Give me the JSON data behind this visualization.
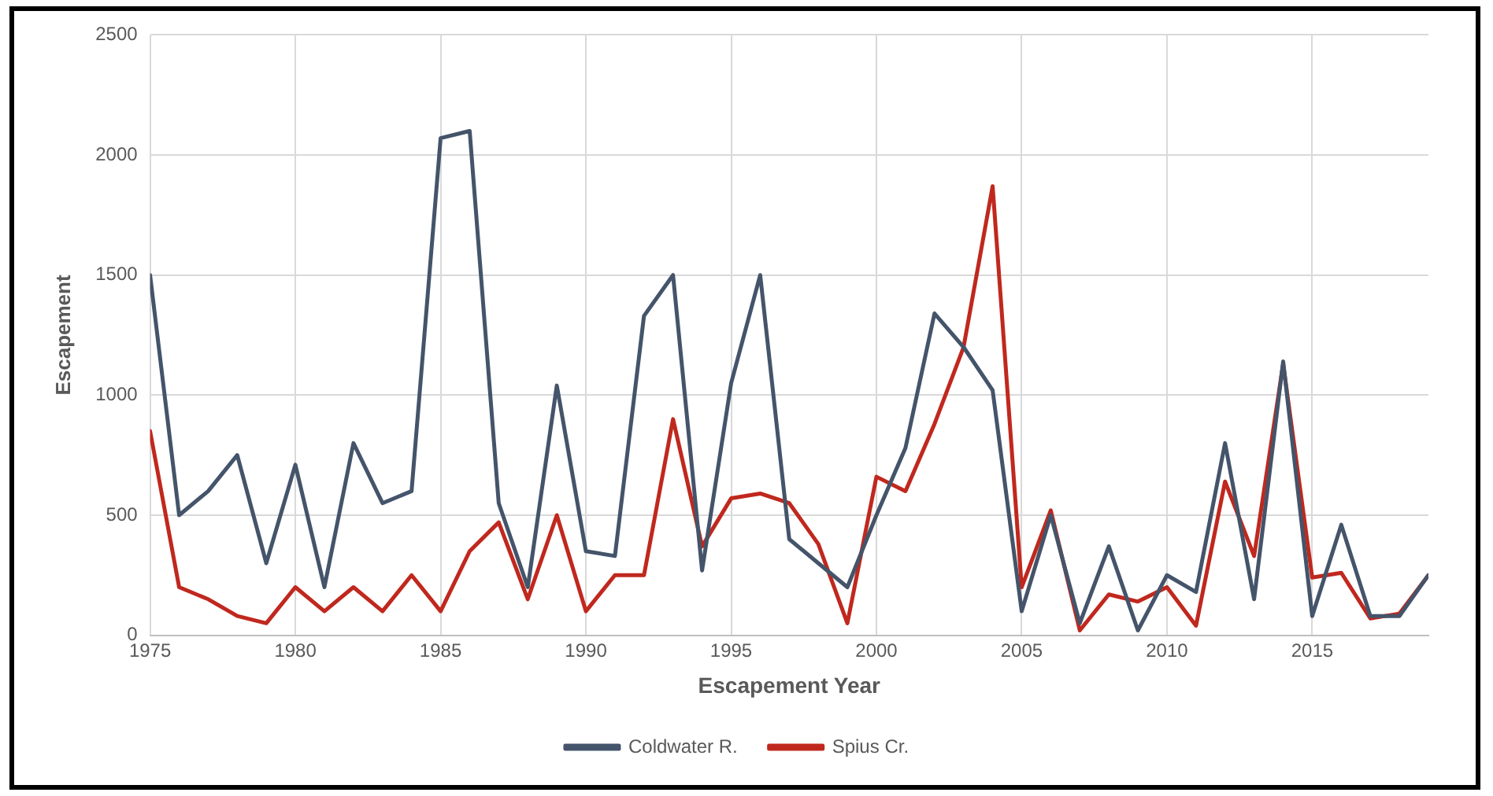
{
  "chart_data": {
    "type": "line",
    "xlabel": "Escapement Year",
    "ylabel": "Escapement",
    "x": [
      1975,
      1976,
      1977,
      1978,
      1979,
      1980,
      1981,
      1982,
      1983,
      1984,
      1985,
      1986,
      1987,
      1988,
      1989,
      1990,
      1991,
      1992,
      1993,
      1994,
      1995,
      1996,
      1997,
      1998,
      1999,
      2000,
      2001,
      2002,
      2003,
      2004,
      2005,
      2006,
      2007,
      2008,
      2009,
      2010,
      2011,
      2012,
      2013,
      2014,
      2015,
      2016,
      2017,
      2018,
      2019
    ],
    "series": [
      {
        "name": "Coldwater R.",
        "color": "#44546a",
        "values": [
          1500,
          500,
          600,
          750,
          300,
          710,
          200,
          800,
          550,
          600,
          2070,
          2100,
          550,
          200,
          1040,
          350,
          330,
          1330,
          1500,
          270,
          1050,
          1500,
          400,
          300,
          200,
          500,
          780,
          1340,
          1200,
          1020,
          100,
          500,
          50,
          370,
          20,
          250,
          180,
          800,
          150,
          1140,
          80,
          460,
          80,
          80,
          250
        ]
      },
      {
        "name": "Spius Cr.",
        "color": "#c0281e",
        "values": [
          850,
          200,
          150,
          80,
          50,
          200,
          100,
          200,
          100,
          250,
          100,
          350,
          470,
          150,
          500,
          100,
          250,
          250,
          900,
          370,
          570,
          590,
          550,
          380,
          50,
          660,
          600,
          880,
          1200,
          1870,
          200,
          520,
          20,
          170,
          140,
          200,
          40,
          640,
          330,
          1130,
          240,
          260,
          70,
          90,
          250
        ]
      }
    ],
    "xlim": [
      1975,
      2019
    ],
    "xticks": [
      1975,
      1980,
      1985,
      1990,
      1995,
      2000,
      2005,
      2010,
      2015
    ],
    "ylim": [
      0,
      2500
    ],
    "yticks": [
      0,
      500,
      1000,
      1500,
      2000,
      2500
    ],
    "grid": true,
    "legend": "bottom",
    "marker": "none",
    "line_style": "solid"
  }
}
